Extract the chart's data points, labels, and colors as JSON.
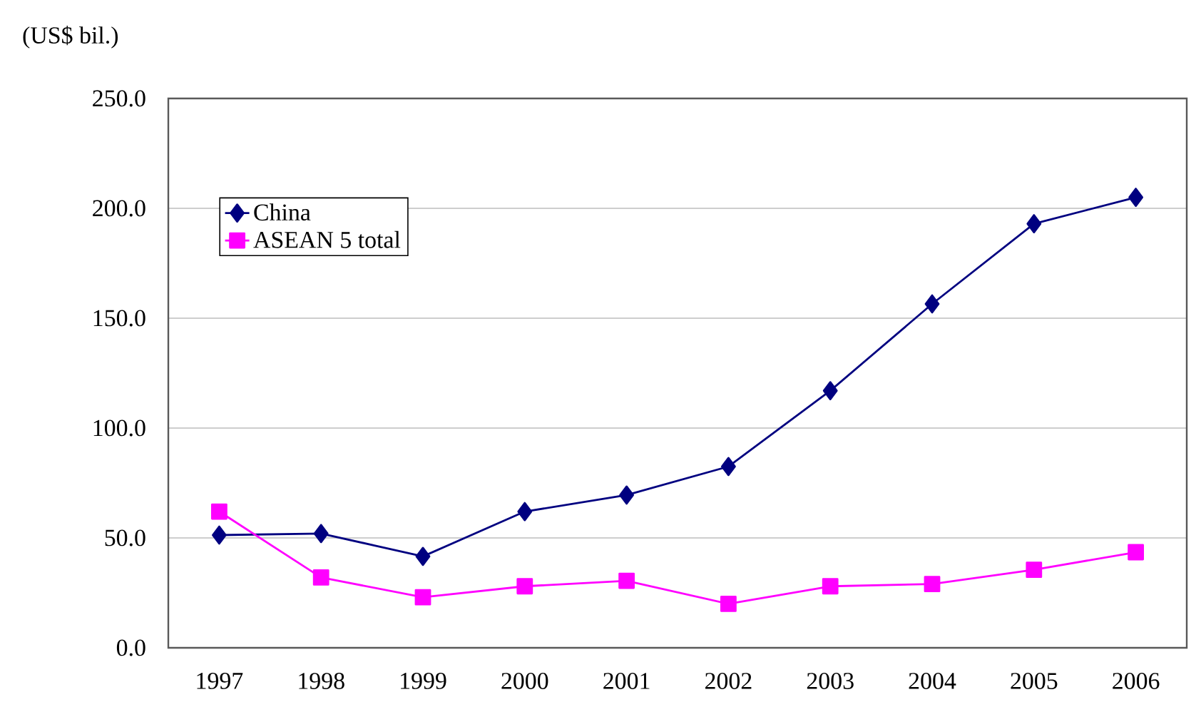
{
  "chart_data": {
    "type": "line",
    "ylabel": "(US$ bil.)",
    "categories": [
      "1997",
      "1998",
      "1999",
      "2000",
      "2001",
      "2002",
      "2003",
      "2004",
      "2005",
      "2006"
    ],
    "series": [
      {
        "name": "China",
        "color": "#000080",
        "marker": "diamond",
        "values": [
          51.3,
          52,
          41.6,
          62,
          69.5,
          82.5,
          117,
          156.5,
          193,
          205
        ]
      },
      {
        "name": "ASEAN 5 total",
        "color": "#ff00ff",
        "marker": "square",
        "values": [
          62,
          32,
          23,
          28,
          30.5,
          20,
          28,
          29,
          35.5,
          43.5
        ]
      }
    ],
    "ylim": [
      0,
      250
    ],
    "yticks": [
      {
        "value": 0,
        "label": "0.0"
      },
      {
        "value": 50,
        "label": "50.0"
      },
      {
        "value": 100,
        "label": "100.0"
      },
      {
        "value": 150,
        "label": "150.0"
      },
      {
        "value": 200,
        "label": "200.0"
      },
      {
        "value": 250,
        "label": "250.0"
      }
    ],
    "grid": "y",
    "legend": "top left",
    "line_style": "solid"
  }
}
